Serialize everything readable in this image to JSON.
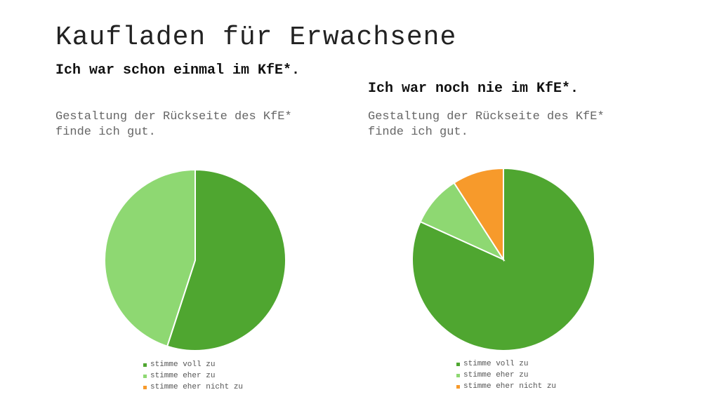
{
  "slide": {
    "title": "Kaufladen für Erwachsene"
  },
  "colors": {
    "voll": "#4fa630",
    "eher": "#8ed872",
    "nicht": "#f79a2b"
  },
  "chart_data": [
    {
      "type": "pie",
      "title": "Ich war schon einmal im KfE*.",
      "subtitle": "Gestaltung der Rückseite des KfE*\nfinde ich gut.",
      "categories": [
        "stimme voll zu",
        "stimme eher zu",
        "stimme eher nicht zu"
      ],
      "values": [
        55,
        45,
        0
      ],
      "colors": [
        "#4fa630",
        "#8ed872",
        "#f79a2b"
      ],
      "legend": "bottom"
    },
    {
      "type": "pie",
      "title": "Ich war noch nie im KfE*.",
      "subtitle": "Gestaltung der Rückseite des KfE*\nfinde ich gut.",
      "categories": [
        "stimme voll zu",
        "stimme eher zu",
        "stimme eher nicht zu"
      ],
      "values": [
        81.8,
        9.1,
        9.1
      ],
      "colors": [
        "#4fa630",
        "#8ed872",
        "#f79a2b"
      ],
      "legend": "bottom"
    }
  ]
}
